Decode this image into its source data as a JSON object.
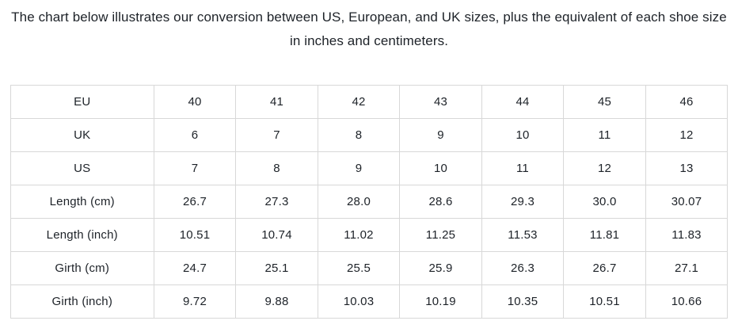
{
  "heading": "The chart below illustrates our conversion between US, European, and UK sizes, plus the equivalent of each shoe size in inches and centimeters.",
  "colors": {
    "background": "#ffffff",
    "border": "#d8d8d8",
    "text": "#1d2228"
  },
  "table": {
    "rows": [
      {
        "label": "EU",
        "values": [
          "40",
          "41",
          "42",
          "43",
          "44",
          "45",
          "46"
        ]
      },
      {
        "label": "UK",
        "values": [
          "6",
          "7",
          "8",
          "9",
          "10",
          "11",
          "12"
        ]
      },
      {
        "label": "US",
        "values": [
          "7",
          "8",
          "9",
          "10",
          "11",
          "12",
          "13"
        ]
      },
      {
        "label": "Length (cm)",
        "values": [
          "26.7",
          "27.3",
          "28.0",
          "28.6",
          "29.3",
          "30.0",
          "30.07"
        ]
      },
      {
        "label": "Length (inch)",
        "values": [
          "10.51",
          "10.74",
          "11.02",
          "11.25",
          "11.53",
          "11.81",
          "11.83"
        ]
      },
      {
        "label": "Girth (cm)",
        "values": [
          "24.7",
          "25.1",
          "25.5",
          "25.9",
          "26.3",
          "26.7",
          "27.1"
        ]
      },
      {
        "label": "Girth (inch)",
        "values": [
          "9.72",
          "9.88",
          "10.03",
          "10.19",
          "10.35",
          "10.51",
          "10.66"
        ]
      }
    ]
  }
}
